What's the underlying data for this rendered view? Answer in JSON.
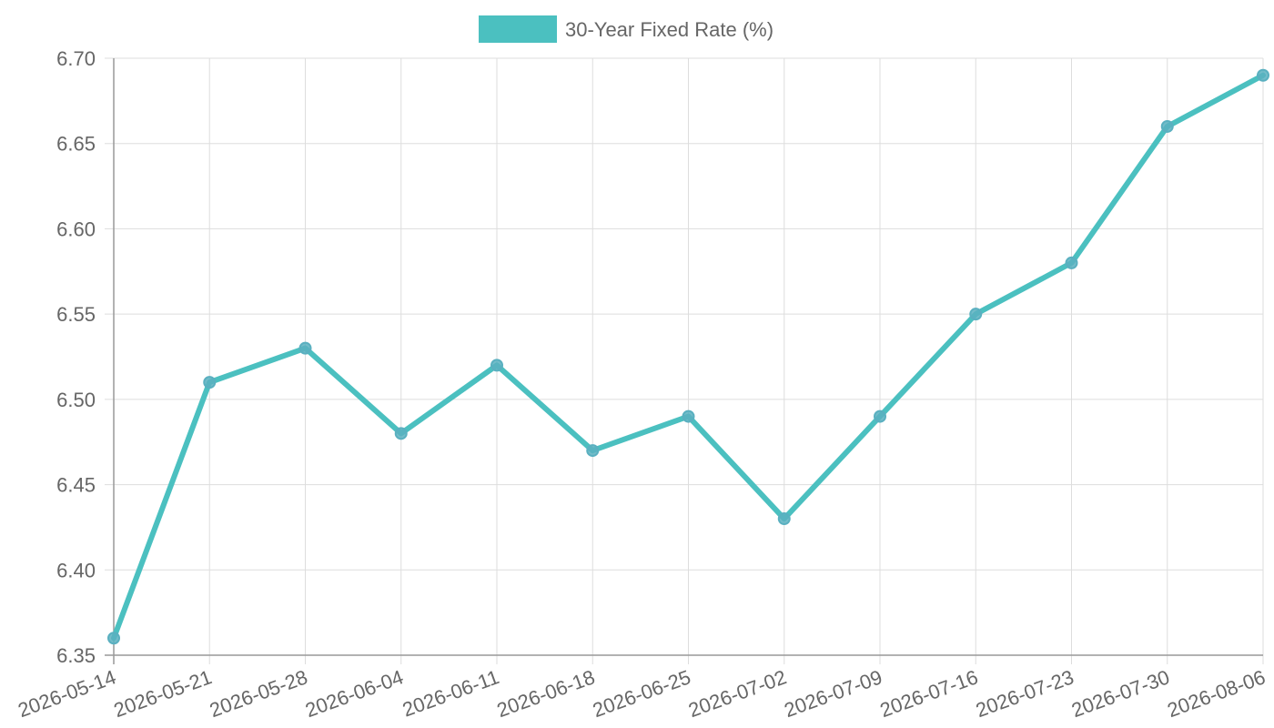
{
  "chart_data": {
    "type": "line",
    "x": [
      "2026-05-14",
      "2026-05-21",
      "2026-05-28",
      "2026-06-04",
      "2026-06-11",
      "2026-06-18",
      "2026-06-25",
      "2026-07-02",
      "2026-07-09",
      "2026-07-16",
      "2026-07-23",
      "2026-07-30",
      "2026-08-06"
    ],
    "series": [
      {
        "name": "30-Year Fixed Rate (%)",
        "values": [
          6.36,
          6.51,
          6.53,
          6.48,
          6.52,
          6.47,
          6.49,
          6.43,
          6.49,
          6.55,
          6.58,
          6.66,
          6.69
        ],
        "color": "#4bc0c0",
        "point_color": "#5ab0c0"
      }
    ],
    "y_ticks": [
      "6.35",
      "6.40",
      "6.45",
      "6.50",
      "6.55",
      "6.60",
      "6.65",
      "6.70"
    ],
    "ylim": [
      6.35,
      6.7
    ],
    "grid": true,
    "legend_position": "top-center",
    "title": "",
    "xlabel": "",
    "ylabel": ""
  }
}
